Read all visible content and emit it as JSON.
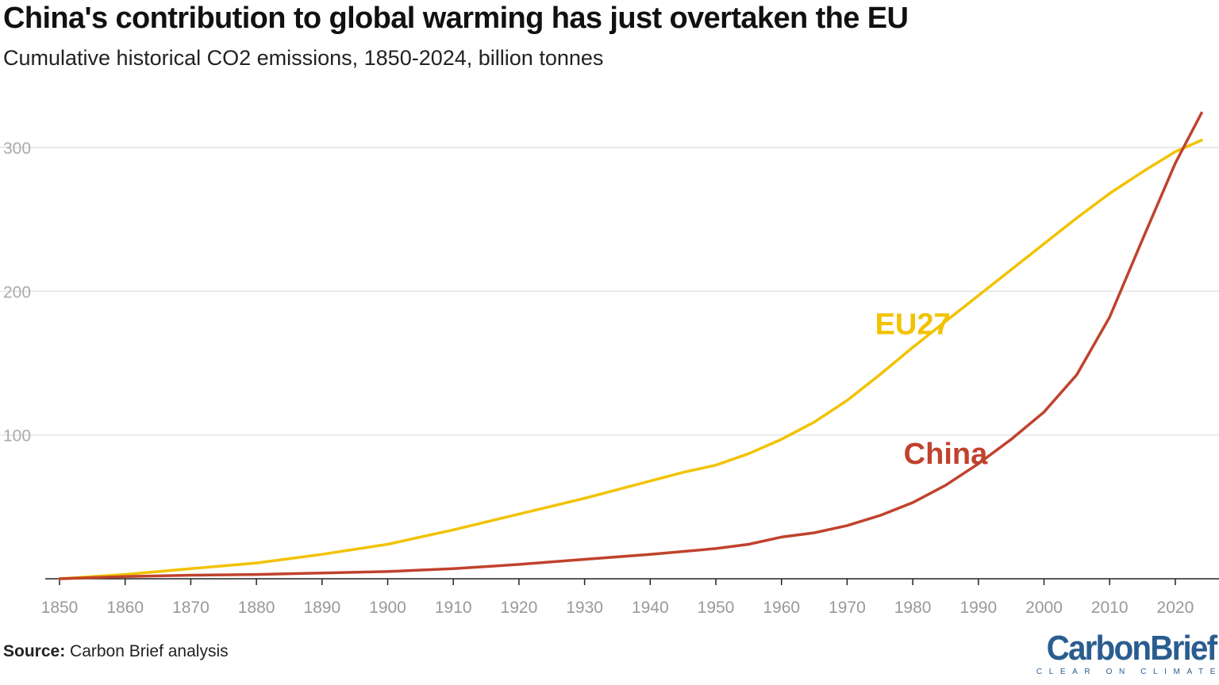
{
  "title": "China's contribution to global warming has just overtaken the EU",
  "subtitle": "Cumulative historical CO2 emissions, 1850-2024, billion tonnes",
  "source_label": "Source:",
  "source_text": "Carbon Brief analysis",
  "logo": {
    "name": "CarbonBrief",
    "tagline": "CLEAR ON CLIMATE"
  },
  "chart_data": {
    "type": "line",
    "title": "China's contribution to global warming has just overtaken the EU",
    "subtitle": "Cumulative historical CO2 emissions, 1850-2024, billion tonnes",
    "xlabel": "",
    "ylabel": "",
    "xlim": [
      1850,
      2024
    ],
    "ylim": [
      0,
      330
    ],
    "grid": true,
    "legend": "inline-labels",
    "xticks": [
      1850,
      1860,
      1870,
      1880,
      1890,
      1900,
      1910,
      1920,
      1930,
      1940,
      1950,
      1960,
      1970,
      1980,
      1990,
      2000,
      2010,
      2020
    ],
    "yticks": [
      100,
      200,
      300
    ],
    "series": [
      {
        "name": "EU27",
        "color": "#f2c200",
        "x": [
          1850,
          1860,
          1870,
          1880,
          1890,
          1900,
          1910,
          1920,
          1930,
          1940,
          1945,
          1950,
          1955,
          1960,
          1965,
          1970,
          1975,
          1980,
          1985,
          1990,
          1995,
          2000,
          2005,
          2010,
          2015,
          2020,
          2024
        ],
        "y": [
          0,
          3,
          7,
          11,
          17,
          24,
          34,
          45,
          56,
          68,
          74,
          79,
          87,
          97,
          109,
          124,
          142,
          161,
          179,
          197,
          215,
          233,
          251,
          268,
          283,
          297,
          305
        ]
      },
      {
        "name": "China",
        "color": "#c0422d",
        "x": [
          1850,
          1860,
          1870,
          1880,
          1890,
          1900,
          1910,
          1920,
          1930,
          1940,
          1950,
          1955,
          1960,
          1965,
          1970,
          1975,
          1980,
          1985,
          1990,
          1995,
          2000,
          2005,
          2010,
          2015,
          2020,
          2024
        ],
        "y": [
          0,
          1.5,
          2.5,
          3,
          4,
          5,
          7,
          10,
          13.5,
          17,
          21,
          24,
          29,
          32,
          37,
          44,
          53,
          65,
          80,
          97,
          116,
          142,
          182,
          236,
          289,
          324
        ]
      }
    ]
  }
}
